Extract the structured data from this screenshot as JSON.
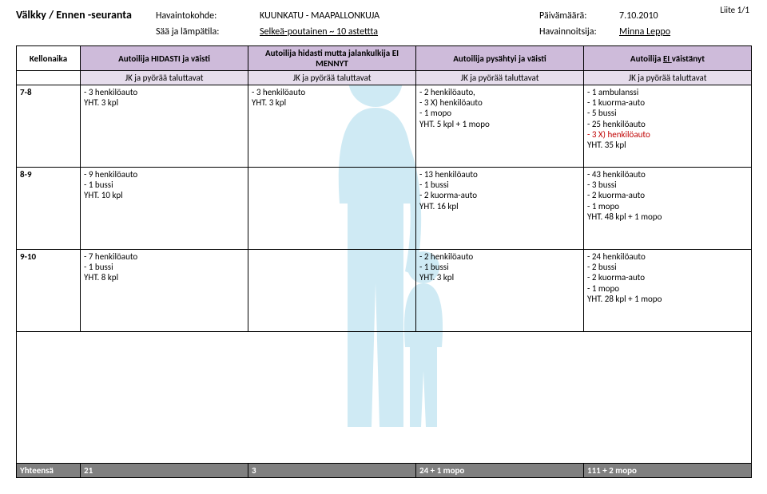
{
  "liite": "Liite 1/1",
  "title": "Välkky / Ennen -seuranta",
  "meta": {
    "kohdeLabel": "Havaintokohde:",
    "kohdeValue": "KUUNKATU - MAAPALLONKUJA",
    "paivaLabel": "Päivämäärä:",
    "paivaValue": "7.10.2010",
    "saaLabel": "Sää ja lämpätila:",
    "saaValue": "Selkeä-poutainen  ~ 10 astettta",
    "havLabel": "Havainnoitsija:",
    "havValue": "Minna Leppo"
  },
  "headers": {
    "kellonaika": "Kellonaika",
    "c1": "Autoilija HIDASTI ja väisti",
    "c2": "Autoilija hidasti mutta jalankulkija EI MENNYT",
    "c3": "Autoilija pysähtyi ja väisti",
    "c4pre": "Autoilija ",
    "c4under": "EI ",
    "c4post": "väistänyt",
    "sub": "JK ja pyörää taluttavat"
  },
  "rows": [
    {
      "time": "7-8",
      "c1": [
        "  - 3 henkilöauto",
        "   YHT.  3 kpl"
      ],
      "c2": [
        "  - 3 henkilöauto",
        "   YHT.  3 kpl"
      ],
      "c3": [
        "- 2 henkilöauto,",
        "- 3 X) henkilöauto",
        "- 1 mopo",
        "YHT.  5 kpl +  1 mopo"
      ],
      "c4": [
        "- 1 ambulanssi",
        "- 1 kuorma-auto",
        "- 5 bussi",
        "- 25 henkilöauto",
        "|- 3 X) henkilöauto",
        "YHT.  35 kpl"
      ]
    },
    {
      "time": "8-9",
      "c1": [
        "  - 9 henkilöauto",
        "  - 1 bussi",
        "   YHT. 10 kpl"
      ],
      "c2": [],
      "c3": [
        "- 13 henkilöauto",
        "- 1 bussi",
        "- 2 kuorma-auto",
        "YHT.  16 kpl"
      ],
      "c4": [
        "- 43 henkilöauto",
        "- 3 bussi",
        "- 2 kuorma-auto",
        "- 1 mopo",
        "YHT. 48 kpl + 1 mopo"
      ]
    },
    {
      "time": "9-10",
      "c1": [
        "  - 7 henkilöauto",
        "  - 1 bussi",
        "    YHT. 8 kpl"
      ],
      "c2": [],
      "c3": [
        "- 2 henkilöauto",
        "- 1 bussi",
        "YHT. 3 kpl"
      ],
      "c4": [
        "- 24 henkilöauto",
        "- 2 bussi",
        "- 2 kuorma-auto",
        "- 1 mopo",
        "YHT. 28 kpl + 1 mopo"
      ]
    }
  ],
  "footer": {
    "label": "Yhteensä",
    "c1": "21",
    "c2": "3",
    "c3": "24 + 1 mopo",
    "c4": "111 + 2 mopo"
  },
  "colors": {
    "header1": "#cebbda",
    "header2": "#e6ddec",
    "footer": "#808080",
    "red": "#c00000",
    "bg": "#2aa4cf"
  }
}
